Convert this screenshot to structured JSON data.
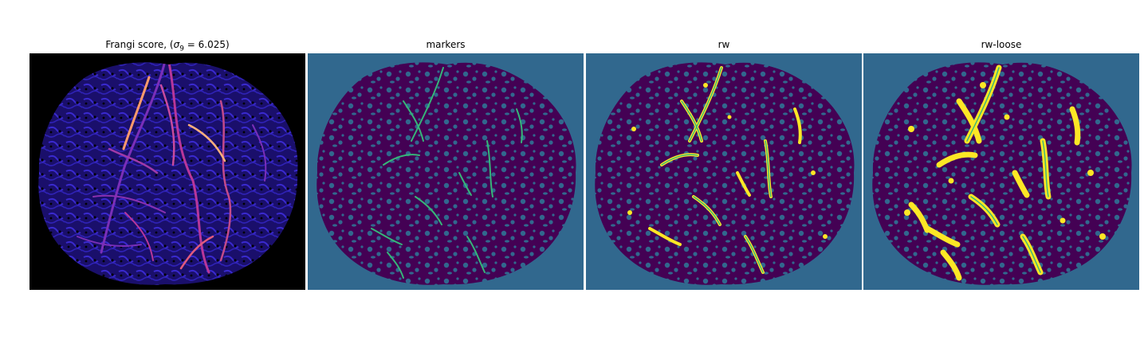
{
  "figure": {
    "panels": [
      {
        "id": "frangi",
        "title_prefix": "Frangi score, (",
        "title_symbol": "σ",
        "title_subscript": "9",
        "title_suffix": " = 6.025)"
      },
      {
        "id": "markers",
        "title": "markers"
      },
      {
        "id": "rw",
        "title": "rw"
      },
      {
        "id": "rw-loose",
        "title": "rw-loose"
      }
    ]
  },
  "colors": {
    "background_teal": "#31688e",
    "tissue_purple": "#440154",
    "marker_green": "#35b779",
    "segment_yellow": "#fde725",
    "frangi_black": "#000000",
    "frangi_blue": "#2a1aa6",
    "frangi_magenta": "#b8379a",
    "frangi_orange": "#ffb07a"
  }
}
